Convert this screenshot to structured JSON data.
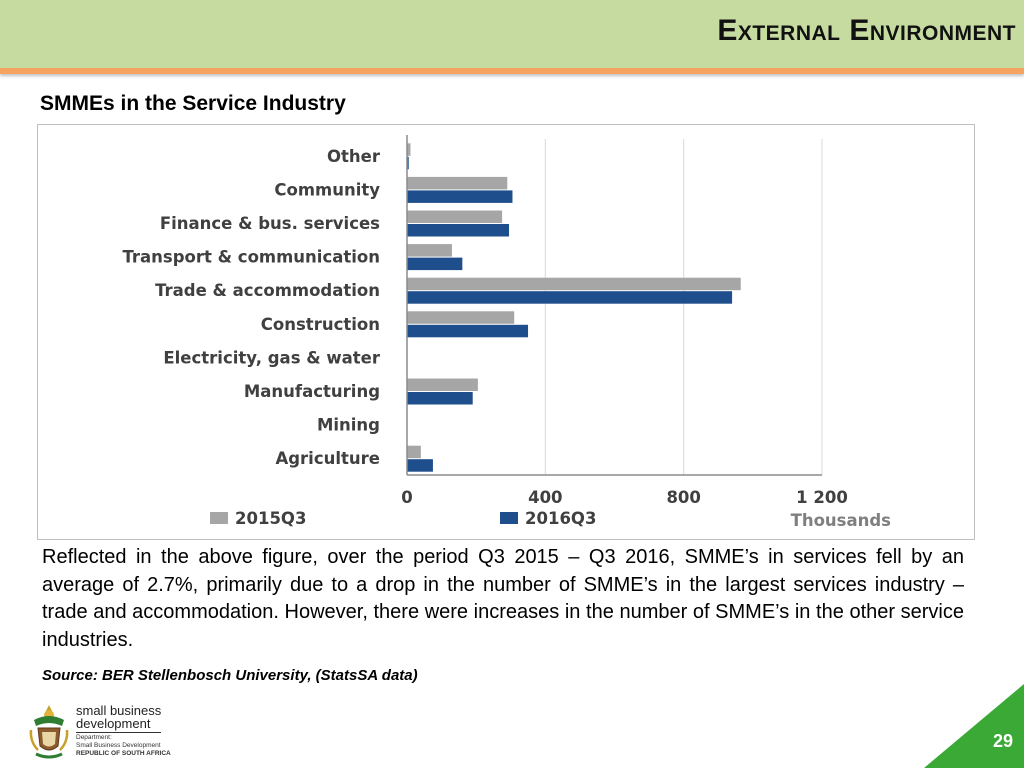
{
  "header": {
    "title": "External Environment"
  },
  "subtitle": "SMMEs in the Service Industry",
  "chart_data": {
    "type": "bar",
    "orientation": "horizontal",
    "categories": [
      "Other",
      "Community",
      "Finance & bus. services",
      "Transport & communication",
      "Trade & accommodation",
      "Construction",
      "Electricity, gas & water",
      "Manufacturing",
      "Mining",
      "Agriculture"
    ],
    "series": [
      {
        "name": "2015Q3",
        "color": "#a6a6a6",
        "values": [
          10,
          290,
          275,
          130,
          965,
          310,
          0,
          205,
          0,
          40
        ]
      },
      {
        "name": "2016Q3",
        "color": "#1f4e8c",
        "values": [
          5,
          305,
          295,
          160,
          940,
          350,
          0,
          190,
          0,
          75
        ]
      }
    ],
    "xticks": [
      "0",
      "400",
      "800",
      "1 200"
    ],
    "xtick_values": [
      0,
      400,
      800,
      1200
    ],
    "xlim": [
      0,
      1200
    ],
    "xlabel": "Thousands",
    "grid": true,
    "legend_position": "bottom"
  },
  "body_text": "Reflected in the above figure, over the period Q3 2015 – Q3 2016, SMME’s in services fell by an average of 2.7%, primarily due to a drop in the number of SMME’s in the largest services industry – trade and accommodation. However, there were increases in the number of SMME’s in the other service industries.",
  "source": "Source: BER Stellenbosch University, (StatsSA data)",
  "logo": {
    "line1": "small business",
    "line2": "development",
    "dept_line1": "Department:",
    "dept_line2": "Small Business Development",
    "dept_line3": "REPUBLIC OF SOUTH AFRICA",
    "icon": "coat-of-arms-icon"
  },
  "page_number": "29",
  "colors": {
    "header_bg": "#c6dba0",
    "header_accent": "#f4a460",
    "corner": "#3aa935"
  }
}
